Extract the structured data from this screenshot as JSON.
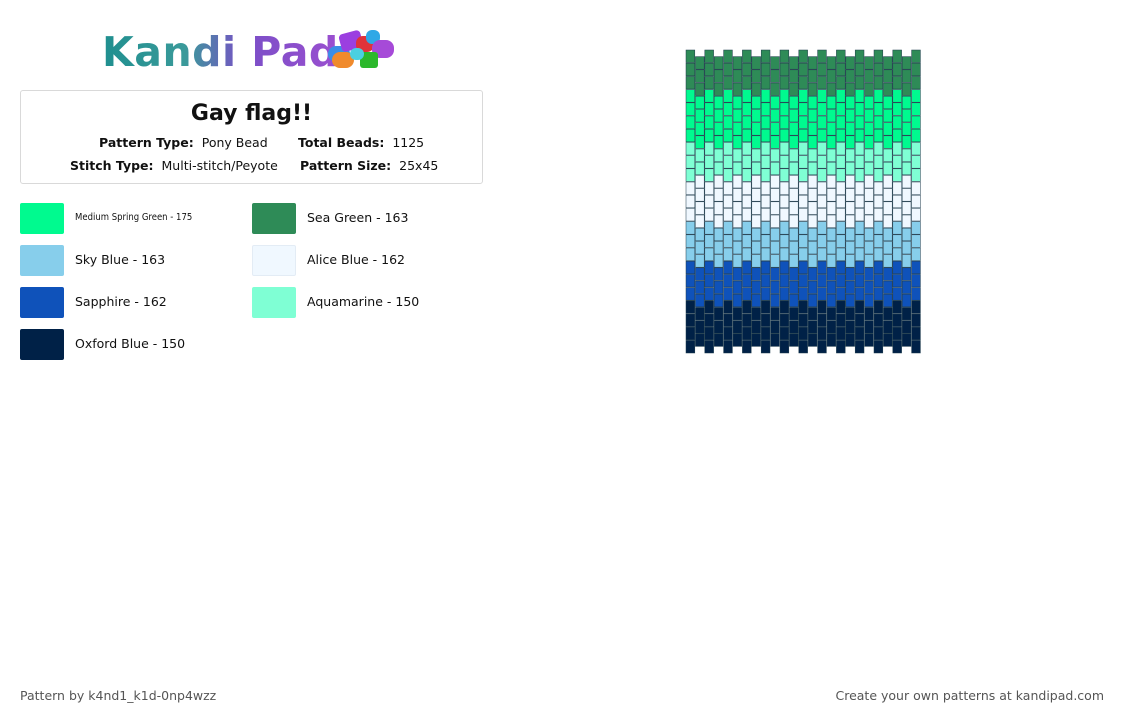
{
  "brand": {
    "name": "Kandi Pad"
  },
  "pattern": {
    "title": "Gay flag!!",
    "pattern_type_label": "Pattern Type:",
    "pattern_type": "Pony Bead",
    "total_beads_label": "Total Beads:",
    "total_beads": "1125",
    "stitch_type_label": "Stitch Type:",
    "stitch_type": "Multi-stitch/Peyote",
    "pattern_size_label": "Pattern Size:",
    "pattern_size": "25x45",
    "columns": 25,
    "rows": 45
  },
  "legend": [
    {
      "label": "Medium Spring Green - 175",
      "color": "#00fa8f"
    },
    {
      "label": "Sea Green - 163",
      "color": "#2e8b57"
    },
    {
      "label": "Sky Blue - 163",
      "color": "#87ceeb"
    },
    {
      "label": "Alice Blue - 162",
      "color": "#f0f8ff"
    },
    {
      "label": "Sapphire - 162",
      "color": "#0f52ba"
    },
    {
      "label": "Aquamarine - 150",
      "color": "#7fffd4"
    },
    {
      "label": "Oxford Blue - 150",
      "color": "#002147"
    }
  ],
  "stripes": [
    {
      "color": "#2e8b57",
      "rows": 7
    },
    {
      "color": "#00fa8f",
      "rows": 7
    },
    {
      "color": "#7fffd4",
      "rows": 6
    },
    {
      "color": "#f0f8ff",
      "rows": 6
    },
    {
      "color": "#87ceeb",
      "rows": 7
    },
    {
      "color": "#0f52ba",
      "rows": 6
    },
    {
      "color": "#002147",
      "rows": 6
    }
  ],
  "footer": {
    "credit": "Pattern by k4nd1_k1d-0np4wzz",
    "cta": "Create your own patterns at kandipad.com"
  }
}
